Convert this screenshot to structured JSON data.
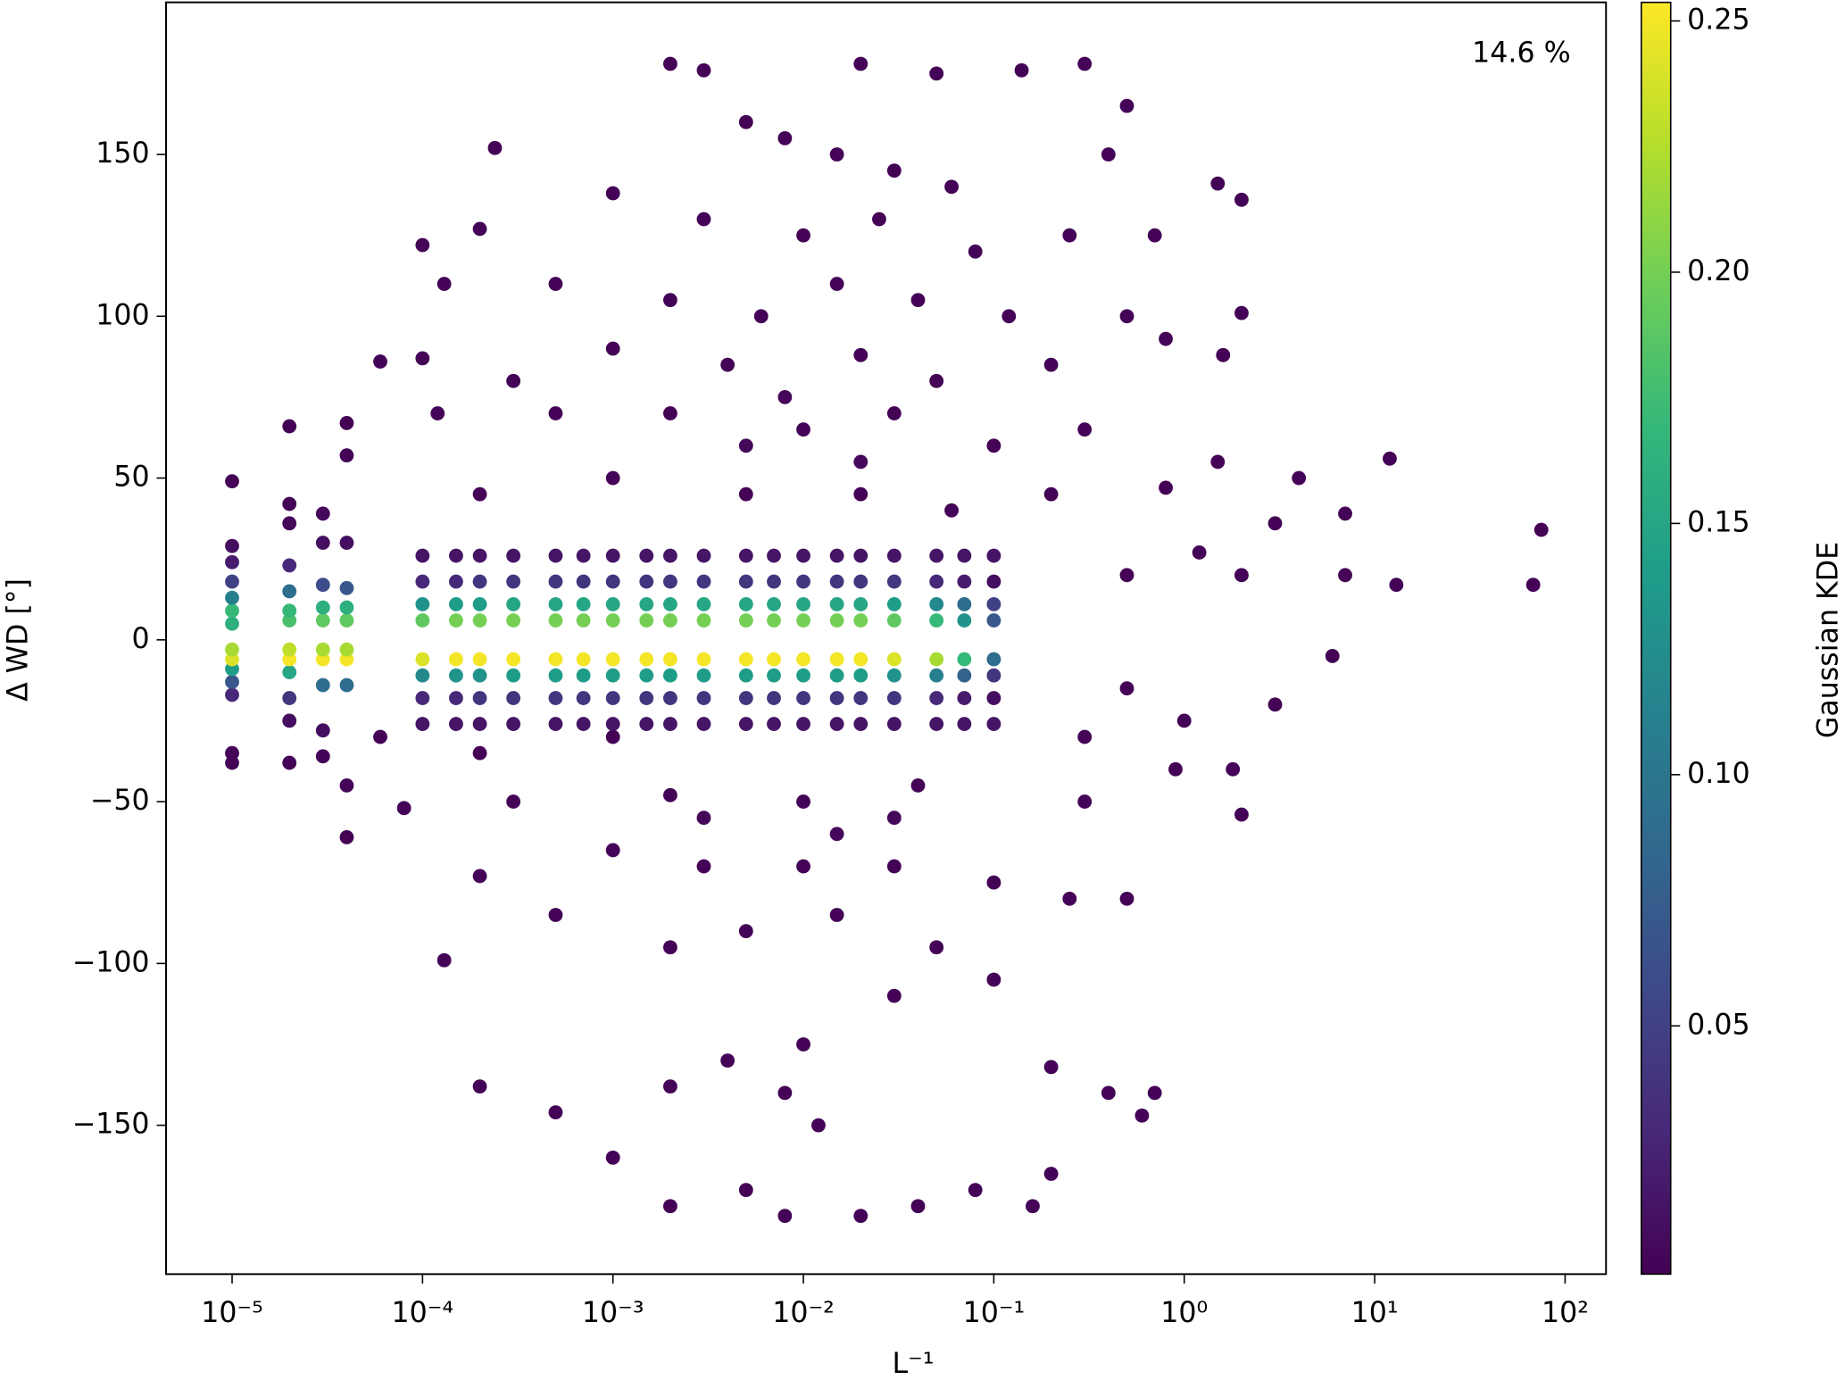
{
  "chart_data": {
    "type": "scatter",
    "xlabel": "L⁻¹",
    "ylabel": "Δ WD [°]",
    "colorbar_label": "Gaussian KDE",
    "annotation": "14.6 %",
    "xscale": "log",
    "colormap": "viridis",
    "xlim": [
      4.5e-06,
      164
    ],
    "xticks": [
      {
        "value": 1e-05,
        "label": "10⁻⁵"
      },
      {
        "value": 0.0001,
        "label": "10⁻⁴"
      },
      {
        "value": 0.001,
        "label": "10⁻³"
      },
      {
        "value": 0.01,
        "label": "10⁻²"
      },
      {
        "value": 0.1,
        "label": "10⁻¹"
      },
      {
        "value": 1,
        "label": "10⁰"
      },
      {
        "value": 10,
        "label": "10¹"
      },
      {
        "value": 100,
        "label": "10²"
      }
    ],
    "ylim": [
      -196,
      197
    ],
    "yticks": [
      {
        "value": -150,
        "label": "−150"
      },
      {
        "value": -100,
        "label": "−100"
      },
      {
        "value": -50,
        "label": "−50"
      },
      0,
      50,
      100,
      150
    ],
    "clim": [
      0.0006,
      0.2537
    ],
    "cticks": [
      0.05,
      {
        "value": 0.1,
        "label": "0.10"
      },
      0.15,
      {
        "value": 0.2,
        "label": "0.20"
      },
      0.25
    ],
    "x": [
      0.002,
      0.003,
      0.02,
      0.05,
      0.14,
      0.3,
      0.5,
      0.00024,
      0.005,
      0.008,
      0.015,
      0.03,
      0.06,
      0.4,
      1.5,
      2,
      0.0001,
      0.0002,
      0.001,
      0.003,
      0.01,
      0.025,
      0.08,
      0.25,
      0.7,
      0.00013,
      0.0005,
      0.002,
      0.006,
      0.015,
      0.04,
      0.12,
      0.5,
      2,
      0.0001,
      6e-05,
      0.0003,
      0.001,
      0.004,
      0.02,
      0.05,
      0.2,
      0.8,
      1.6,
      0.00012,
      0.0005,
      0.002,
      0.01,
      0.03,
      0.1,
      0.3,
      1.5,
      12,
      0.0002,
      0.001,
      0.005,
      0.02,
      0.06,
      0.2,
      0.8,
      4,
      7,
      3,
      75,
      1.2,
      68,
      13,
      7,
      2,
      0.5,
      6e-05,
      0.0002,
      0.001,
      0.3,
      1,
      3,
      6,
      0.5,
      8e-05,
      0.0003,
      0.002,
      0.01,
      0.04,
      0.3,
      1.8,
      2,
      0.9,
      0.0002,
      0.001,
      0.003,
      0.01,
      0.03,
      0.1,
      0.00013,
      0.0005,
      0.002,
      0.005,
      0.015,
      0.05,
      0.25,
      0.5,
      0.0002,
      0.0005,
      0.002,
      0.004,
      0.01,
      0.03,
      0.1,
      0.2,
      0.4,
      0.6,
      0.7,
      0.001,
      0.002,
      0.005,
      0.008,
      0.02,
      0.04,
      0.08,
      0.16,
      0.2,
      0.012,
      0.008,
      0.005,
      0.02,
      0.003,
      0.03,
      0.008,
      0.015,
      0.0001,
      0.00015,
      0.0002,
      0.0003,
      0.0005,
      0.0007,
      0.001,
      0.0015,
      0.002,
      0.003,
      0.005,
      0.007,
      0.01,
      0.015,
      0.02,
      0.03,
      0.05,
      0.07,
      0.1,
      0.0001,
      0.00015,
      0.0002,
      0.0003,
      0.0005,
      0.0007,
      0.001,
      0.0015,
      0.002,
      0.003,
      0.005,
      0.007,
      0.01,
      0.015,
      0.02,
      0.03,
      0.05,
      0.07,
      0.1,
      1e-05,
      1e-05,
      1e-05,
      1e-05,
      1e-05,
      1e-05,
      1e-05,
      1e-05,
      1e-05,
      1e-05,
      1e-05,
      1e-05,
      1e-05,
      1e-05,
      2e-05,
      2e-05,
      2e-05,
      2e-05,
      2e-05,
      2e-05,
      2e-05,
      2e-05,
      2e-05,
      2e-05,
      2e-05,
      2e-05,
      2e-05,
      3e-05,
      3e-05,
      3e-05,
      3e-05,
      3e-05,
      3e-05,
      3e-05,
      3e-05,
      3e-05,
      3e-05,
      4e-05,
      4e-05,
      4e-05,
      4e-05,
      4e-05,
      4e-05,
      4e-05,
      4e-05,
      4e-05,
      4e-05,
      4e-05,
      0.0001,
      0.00015,
      0.0002,
      0.0003,
      0.0005,
      0.0007,
      0.001,
      0.0015,
      0.002,
      0.003,
      0.005,
      0.007,
      0.01,
      0.015,
      0.02,
      0.03,
      0.05,
      0.07,
      0.1,
      0.0001,
      0.00015,
      0.0002,
      0.0003,
      0.0005,
      0.0007,
      0.001,
      0.0015,
      0.002,
      0.003,
      0.005,
      0.007,
      0.01,
      0.015,
      0.02,
      0.03,
      0.05,
      0.07,
      0.1,
      0.0001,
      0.00015,
      0.0002,
      0.0003,
      0.0005,
      0.0007,
      0.001,
      0.0015,
      0.002,
      0.003,
      0.005,
      0.007,
      0.01,
      0.015,
      0.02,
      0.03,
      0.05,
      0.07,
      0.1,
      0.0001,
      0.00015,
      0.0002,
      0.0003,
      0.0005,
      0.0007,
      0.001,
      0.0015,
      0.002,
      0.003,
      0.005,
      0.007,
      0.01,
      0.015,
      0.02,
      0.03,
      0.05,
      0.07,
      0.1,
      0.0001,
      0.00015,
      0.0002,
      0.0003,
      0.0005,
      0.0007,
      0.001,
      0.0015,
      0.002,
      0.003,
      0.005,
      0.007,
      0.01,
      0.015,
      0.02,
      0.03,
      0.05,
      0.07,
      0.1,
      0.0001,
      0.00015,
      0.0002,
      0.0003,
      0.0005,
      0.0007,
      0.001,
      0.0015,
      0.002,
      0.003,
      0.005,
      0.007,
      0.01,
      0.015,
      0.02,
      0.03,
      0.05,
      0.07,
      0.1
    ],
    "y": [
      178,
      176,
      178,
      175,
      176,
      178,
      165,
      152,
      160,
      155,
      150,
      145,
      140,
      150,
      141,
      136,
      122,
      127,
      138,
      130,
      125,
      130,
      120,
      125,
      125,
      110,
      110,
      105,
      100,
      110,
      105,
      100,
      100,
      101,
      87,
      86,
      80,
      90,
      85,
      88,
      80,
      85,
      93,
      88,
      70,
      70,
      70,
      65,
      70,
      60,
      65,
      55,
      56,
      45,
      50,
      45,
      45,
      40,
      45,
      47,
      50,
      39,
      36,
      34,
      27,
      17,
      17,
      20,
      20,
      20,
      -30,
      -35,
      -30,
      -30,
      -25,
      -20,
      -5,
      -15,
      -52,
      -50,
      -48,
      -50,
      -45,
      -50,
      -40,
      -54,
      -40,
      -73,
      -65,
      -70,
      -70,
      -70,
      -75,
      -99,
      -85,
      -95,
      -90,
      -85,
      -95,
      -80,
      -80,
      -138,
      -146,
      -138,
      -130,
      -125,
      -110,
      -105,
      -132,
      -140,
      -147,
      -140,
      -160,
      -175,
      -170,
      -178,
      -178,
      -175,
      -170,
      -175,
      -165,
      -150,
      -140,
      60,
      55,
      -55,
      -55,
      75,
      -60,
      26,
      26,
      26,
      26,
      26,
      26,
      26,
      26,
      26,
      26,
      26,
      26,
      26,
      26,
      26,
      26,
      26,
      26,
      26,
      -26,
      -26,
      -26,
      -26,
      -26,
      -26,
      -26,
      -26,
      -26,
      -26,
      -26,
      -26,
      -26,
      -26,
      -26,
      -26,
      -26,
      -26,
      -26,
      -38,
      -35,
      -17,
      -13,
      -9,
      -6,
      -3,
      5,
      9,
      13,
      18,
      24,
      29,
      49,
      -38,
      -25,
      -18,
      -10,
      -6,
      -3,
      6,
      9,
      15,
      23,
      36,
      42,
      66,
      -36,
      -28,
      -14,
      -6,
      -3,
      6,
      10,
      17,
      30,
      39,
      -61,
      -45,
      -14,
      -6,
      -3,
      6,
      10,
      16,
      30,
      57,
      67,
      18,
      18,
      18,
      18,
      18,
      18,
      18,
      18,
      18,
      18,
      18,
      18,
      18,
      18,
      18,
      18,
      18,
      18,
      18,
      -18,
      -18,
      -18,
      -18,
      -18,
      -18,
      -18,
      -18,
      -18,
      -18,
      -18,
      -18,
      -18,
      -18,
      -18,
      -18,
      -18,
      -18,
      -18,
      11,
      11,
      11,
      11,
      11,
      11,
      11,
      11,
      11,
      11,
      11,
      11,
      11,
      11,
      11,
      11,
      11,
      11,
      11,
      -11,
      -11,
      -11,
      -11,
      -11,
      -11,
      -11,
      -11,
      -11,
      -11,
      -11,
      -11,
      -11,
      -11,
      -11,
      -11,
      -11,
      -11,
      -11,
      6,
      6,
      6,
      6,
      6,
      6,
      6,
      6,
      6,
      6,
      6,
      6,
      6,
      6,
      6,
      6,
      6,
      6,
      6,
      -6,
      -6,
      -6,
      -6,
      -6,
      -6,
      -6,
      -6,
      -6,
      -6,
      -6,
      -6,
      -6,
      -6,
      -6,
      -6,
      -6,
      -6,
      -6
    ],
    "kde": [
      0.002,
      0.002,
      0.002,
      0.002,
      0.002,
      0.002,
      0.002,
      0.002,
      0.002,
      0.002,
      0.002,
      0.002,
      0.002,
      0.002,
      0.002,
      0.002,
      0.002,
      0.002,
      0.002,
      0.002,
      0.002,
      0.002,
      0.002,
      0.002,
      0.002,
      0.002,
      0.002,
      0.002,
      0.002,
      0.002,
      0.002,
      0.002,
      0.002,
      0.002,
      0.002,
      0.002,
      0.002,
      0.002,
      0.002,
      0.002,
      0.002,
      0.002,
      0.002,
      0.002,
      0.002,
      0.002,
      0.002,
      0.002,
      0.002,
      0.002,
      0.002,
      0.002,
      0.002,
      0.002,
      0.002,
      0.002,
      0.002,
      0.002,
      0.002,
      0.002,
      0.002,
      0.002,
      0.002,
      0.002,
      0.002,
      0.002,
      0.002,
      0.002,
      0.002,
      0.002,
      0.002,
      0.002,
      0.002,
      0.002,
      0.002,
      0.002,
      0.002,
      0.002,
      0.002,
      0.002,
      0.002,
      0.002,
      0.002,
      0.002,
      0.002,
      0.002,
      0.002,
      0.002,
      0.002,
      0.002,
      0.002,
      0.002,
      0.002,
      0.002,
      0.002,
      0.002,
      0.002,
      0.002,
      0.002,
      0.002,
      0.002,
      0.002,
      0.002,
      0.002,
      0.002,
      0.002,
      0.002,
      0.002,
      0.002,
      0.002,
      0.002,
      0.002,
      0.002,
      0.002,
      0.002,
      0.002,
      0.002,
      0.002,
      0.002,
      0.002,
      0.002,
      0.002,
      0.002,
      0.005,
      0.005,
      0.005,
      0.005,
      0.005,
      0.005,
      0.015,
      0.015,
      0.015,
      0.015,
      0.015,
      0.015,
      0.015,
      0.015,
      0.015,
      0.015,
      0.015,
      0.015,
      0.015,
      0.015,
      0.015,
      0.015,
      0.015,
      0.015,
      0.015,
      0.015,
      0.015,
      0.015,
      0.015,
      0.015,
      0.015,
      0.015,
      0.015,
      0.015,
      0.015,
      0.015,
      0.015,
      0.015,
      0.015,
      0.015,
      0.015,
      0.015,
      0.015,
      0.015,
      0.002,
      0.003,
      0.03,
      0.07,
      0.14,
      0.24,
      0.22,
      0.16,
      0.17,
      0.11,
      0.05,
      0.02,
      0.01,
      0.002,
      0.002,
      0.01,
      0.04,
      0.15,
      0.25,
      0.23,
      0.18,
      0.17,
      0.09,
      0.03,
      0.005,
      0.003,
      0.001,
      0.003,
      0.01,
      0.09,
      0.25,
      0.22,
      0.19,
      0.16,
      0.06,
      0.01,
      0.005,
      0.001,
      0.003,
      0.09,
      0.25,
      0.22,
      0.19,
      0.16,
      0.07,
      0.01,
      0.002,
      0.001,
      0.03,
      0.03,
      0.04,
      0.04,
      0.04,
      0.04,
      0.04,
      0.04,
      0.04,
      0.04,
      0.04,
      0.04,
      0.04,
      0.04,
      0.04,
      0.04,
      0.03,
      0.02,
      0.01,
      0.03,
      0.03,
      0.04,
      0.04,
      0.04,
      0.04,
      0.04,
      0.04,
      0.04,
      0.04,
      0.04,
      0.04,
      0.04,
      0.04,
      0.04,
      0.04,
      0.03,
      0.02,
      0.01,
      0.13,
      0.14,
      0.14,
      0.15,
      0.15,
      0.15,
      0.15,
      0.15,
      0.15,
      0.15,
      0.15,
      0.15,
      0.15,
      0.15,
      0.15,
      0.14,
      0.12,
      0.09,
      0.05,
      0.12,
      0.13,
      0.13,
      0.14,
      0.14,
      0.14,
      0.14,
      0.14,
      0.14,
      0.14,
      0.14,
      0.14,
      0.14,
      0.14,
      0.14,
      0.13,
      0.11,
      0.08,
      0.04,
      0.19,
      0.2,
      0.2,
      0.2,
      0.2,
      0.2,
      0.2,
      0.2,
      0.2,
      0.2,
      0.2,
      0.2,
      0.2,
      0.2,
      0.2,
      0.19,
      0.17,
      0.13,
      0.07,
      0.24,
      0.25,
      0.25,
      0.25,
      0.25,
      0.25,
      0.25,
      0.25,
      0.25,
      0.25,
      0.25,
      0.25,
      0.25,
      0.25,
      0.25,
      0.24,
      0.22,
      0.17,
      0.09
    ]
  }
}
